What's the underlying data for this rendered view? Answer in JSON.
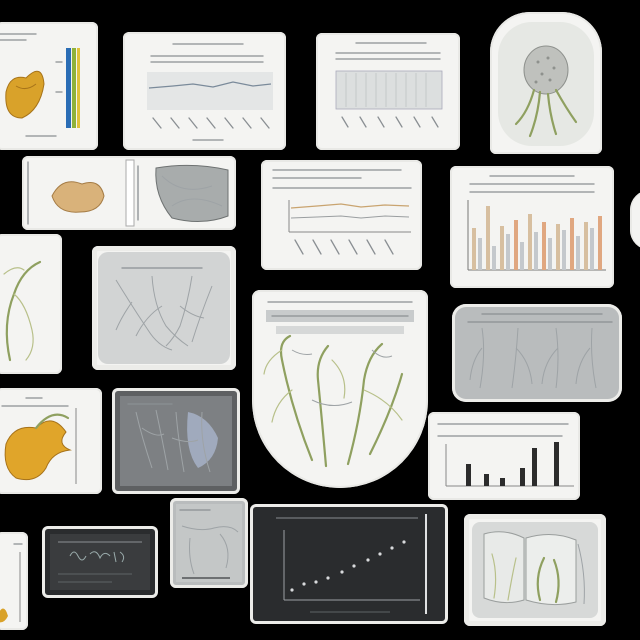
{
  "background_color": "#000000",
  "cards": [
    {
      "name": "card-specimen-yellow-chart"
    },
    {
      "name": "card-line-chart-1"
    },
    {
      "name": "card-bar-chart-pale"
    },
    {
      "name": "card-seed-pod-specimen"
    },
    {
      "name": "card-root-tuber-specimens"
    },
    {
      "name": "card-line-chart-2"
    },
    {
      "name": "card-bar-chart-colored"
    },
    {
      "name": "card-vine-sketch-left"
    },
    {
      "name": "card-branching-roots"
    },
    {
      "name": "card-large-root-illustration"
    },
    {
      "name": "card-root-panel-right"
    },
    {
      "name": "card-yellow-flower-specimen"
    },
    {
      "name": "card-blue-root-panel"
    },
    {
      "name": "card-dark-bar-chart"
    },
    {
      "name": "card-small-specimen-bottom-left"
    },
    {
      "name": "card-dark-panel-lettering"
    },
    {
      "name": "card-small-gray-sketch"
    },
    {
      "name": "card-dark-scatter-plot"
    },
    {
      "name": "card-root-panel-bottom-right"
    }
  ]
}
